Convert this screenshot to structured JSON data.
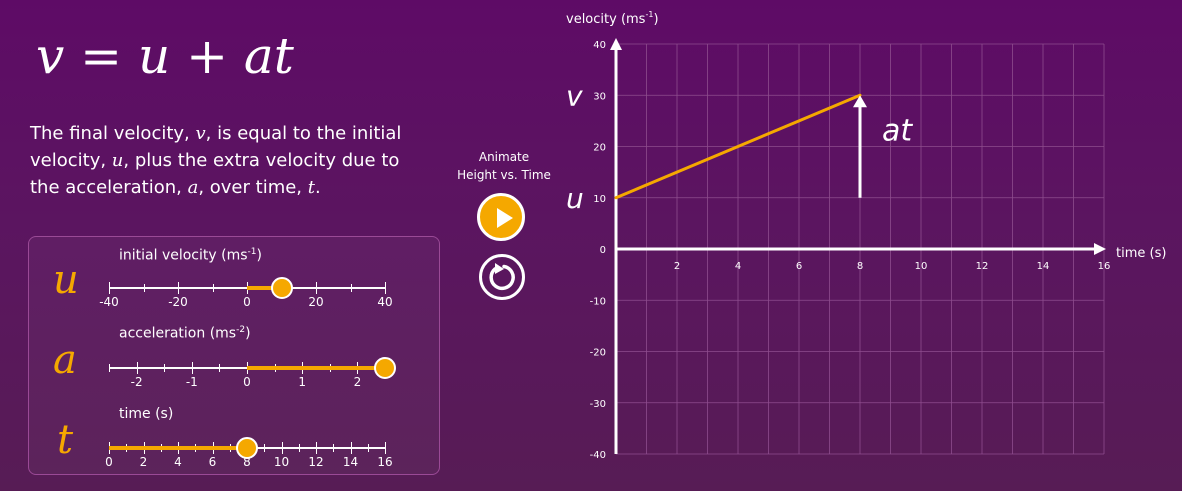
{
  "equation": {
    "v": "v",
    "eq": "=",
    "u": "u",
    "plus": "+",
    "at": "at"
  },
  "description": {
    "p1": "The final velocity, ",
    "v": "v",
    "p2": ", is equal to the initial velocity, ",
    "u": "u",
    "p3": ", plus the extra velocity due to the acceleration, ",
    "a": "a",
    "p4": ", over time, ",
    "t": "t",
    "p5": "."
  },
  "sliders": {
    "initial_velocity": {
      "title": "initial velocity (ms",
      "unit_exp": "-1",
      "title_end": ")",
      "letter": "u",
      "min": -40,
      "max": 40,
      "value": 10,
      "tick_labels": [
        "-40",
        "-20",
        "0",
        "20",
        "40"
      ]
    },
    "acceleration": {
      "title": "acceleration (ms",
      "unit_exp": "-2",
      "title_end": ")",
      "letter": "a",
      "min": -2.5,
      "max": 2.5,
      "value": 2.5,
      "tick_labels": [
        "-2",
        "-1",
        "0",
        "1",
        "2"
      ]
    },
    "time": {
      "title": "time (s)",
      "letter": "t",
      "min": 0,
      "max": 16,
      "value": 8,
      "tick_labels": [
        "0",
        "2",
        "4",
        "6",
        "8",
        "10",
        "12",
        "14",
        "16"
      ]
    }
  },
  "animate": {
    "line1": "Animate",
    "line2": "Height vs. Time",
    "play_icon": "play-icon",
    "reset_icon": "reset-icon"
  },
  "colors": {
    "accent": "#f5a800",
    "background": "#5b1560",
    "grid": "#8e4d8e"
  },
  "chart_data": {
    "type": "line",
    "title": "",
    "xlabel": "time (s)",
    "ylabel_main": "velocity (ms",
    "ylabel_exp": "-1",
    "ylabel_end": ")",
    "xlim": [
      0,
      16
    ],
    "ylim": [
      -40,
      40
    ],
    "grid": true,
    "x_ticks": [
      "2",
      "4",
      "6",
      "8",
      "10",
      "12",
      "14",
      "16"
    ],
    "y_ticks": [
      "40",
      "30",
      "20",
      "10",
      "0",
      "-10",
      "-20",
      "-30",
      "-40"
    ],
    "series": [
      {
        "x": [
          0,
          8
        ],
        "y": [
          10,
          30
        ]
      }
    ],
    "annotations": {
      "v_label": "v",
      "u_label": "u",
      "at_label": "at",
      "at_arrow_x": 8,
      "at_arrow_from": 10,
      "at_arrow_to": 30
    }
  }
}
